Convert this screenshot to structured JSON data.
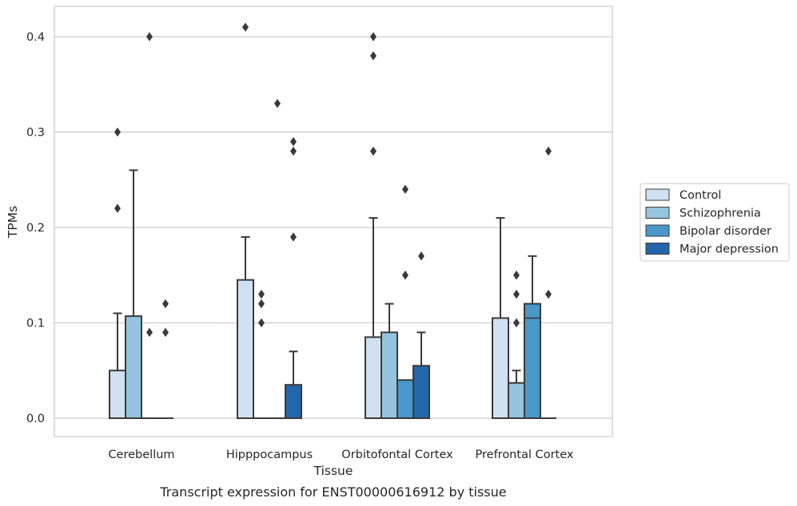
{
  "chart_data": {
    "type": "bar",
    "xlabel": "Tissue",
    "ylabel": "TPMs",
    "caption": "Transcript expression for ENST00000616912 by tissue",
    "ylim": [
      -0.02,
      0.43
    ],
    "yticks": [
      "0.0",
      "0.1",
      "0.2",
      "0.3",
      "0.4"
    ],
    "grid": "horizontal",
    "legend_position": "right",
    "categories": [
      "Cerebellum",
      "Hipppocampus",
      "Orbitofontal Cortex",
      "Prefrontal Cortex"
    ],
    "series": [
      {
        "name": "Control",
        "color": "#d0e1f2",
        "values": [
          0.05,
          0.145,
          0.085,
          0.105
        ],
        "error_upper": [
          0.11,
          0.19,
          0.21,
          0.21
        ],
        "outliers": [
          [
            0.3,
            0.22
          ],
          [
            0.41
          ],
          [
            0.4,
            0.38,
            0.28
          ],
          []
        ]
      },
      {
        "name": "Schizophrenia",
        "color": "#94c4df",
        "values": [
          0.107,
          0.0,
          0.09,
          0.037
        ],
        "error_upper": [
          0.26,
          null,
          0.12,
          0.05
        ],
        "outliers": [
          [],
          [
            0.13,
            0.12,
            0.1
          ],
          [],
          [
            0.15,
            0.13,
            0.1
          ]
        ]
      },
      {
        "name": "Bipolar disorder",
        "color": "#4a98c9",
        "values": [
          0.0,
          0.0,
          0.04,
          0.12
        ],
        "median": [
          null,
          null,
          null,
          0.105
        ],
        "error_upper": [
          null,
          null,
          null,
          0.17
        ],
        "outliers": [
          [
            0.4,
            0.09
          ],
          [
            0.33
          ],
          [
            0.24,
            0.15
          ],
          []
        ]
      },
      {
        "name": "Major depression",
        "color": "#2366ab",
        "values": [
          0.0,
          0.035,
          0.055,
          0.0
        ],
        "error_upper": [
          null,
          0.07,
          0.09,
          null
        ],
        "outliers": [
          [
            0.12,
            0.09
          ],
          [
            0.29,
            0.28,
            0.19
          ],
          [
            0.17
          ],
          [
            0.28,
            0.13
          ]
        ]
      }
    ]
  }
}
